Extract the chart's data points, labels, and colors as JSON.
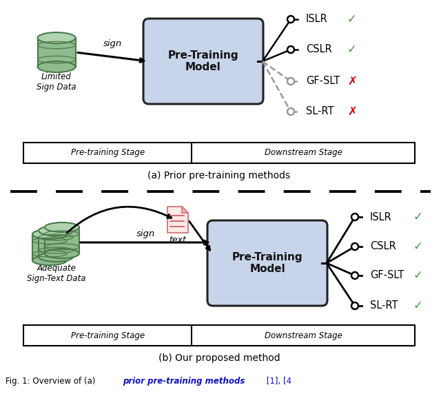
{
  "bg_color": "#ffffff",
  "fig_width": 6.4,
  "fig_height": 6.04,
  "dpi": 100,
  "db_color_body": "#8fbc8f",
  "db_color_line": "#4a7a4a",
  "db_color_top": "#b0d4b0",
  "top_panel": {
    "caption": "(a) Prior pre-training methods",
    "outputs": [
      "ISLR",
      "CSLR",
      "GF-SLT",
      "SL-RT"
    ],
    "output_solid": [
      true,
      true,
      false,
      false
    ],
    "output_marks": [
      "✓",
      "✓",
      "✗",
      "✗"
    ],
    "output_mark_colors": [
      "#3a9a3a",
      "#3a9a3a",
      "#cc0000",
      "#cc0000"
    ],
    "stage_labels": [
      "Pre-training Stage",
      "Downstream Stage"
    ]
  },
  "bottom_panel": {
    "caption": "(b) Our proposed method",
    "outputs": [
      "ISLR",
      "CSLR",
      "GF-SLT",
      "SL-RT"
    ],
    "output_marks": [
      "✓",
      "✓",
      "✓",
      "✓"
    ],
    "output_mark_colors": [
      "#3a9a3a",
      "#3a9a3a",
      "#3a9a3a",
      "#3a9a3a"
    ],
    "stage_labels": [
      "Pre-training Stage",
      "Downstream Stage"
    ]
  },
  "box_color": "#c8d4ea",
  "box_edge": "#222222",
  "footer_text": "Fig. 1: Overview of (a) "
}
